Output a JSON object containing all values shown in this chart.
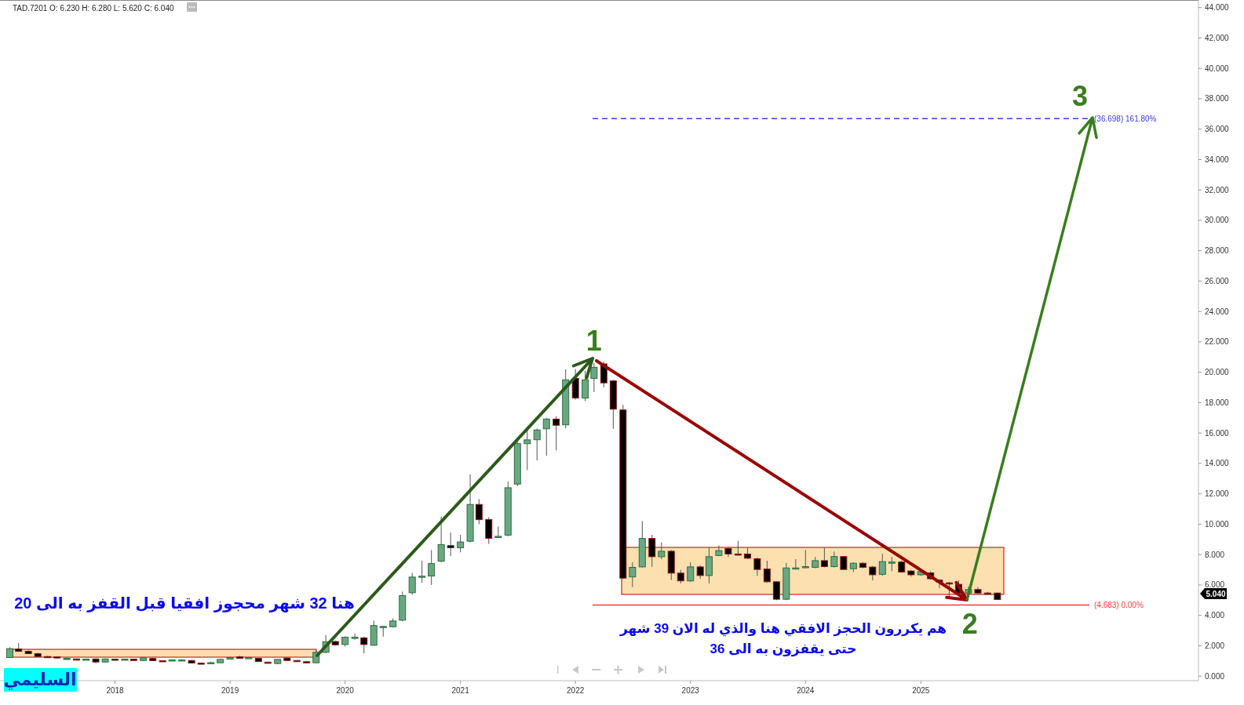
{
  "chart_data": {
    "type": "candlestick",
    "title": "TAD.7201   O: 6.230  H: 6.280  L: 5.620  C: 6.040",
    "x": [
      "2017-02",
      "2017-03",
      "2017-04",
      "2017-05",
      "2017-06",
      "2017-07",
      "2017-08",
      "2017-09",
      "2017-10",
      "2017-11",
      "2017-12",
      "2018-01",
      "2018-02",
      "2018-03",
      "2018-04",
      "2018-05",
      "2018-06",
      "2018-07",
      "2018-08",
      "2018-09",
      "2018-10",
      "2018-11",
      "2018-12",
      "2019-01",
      "2019-02",
      "2019-03",
      "2019-04",
      "2019-05",
      "2019-06",
      "2019-07",
      "2019-08",
      "2019-09",
      "2019-10",
      "2019-11",
      "2019-12",
      "2020-01",
      "2020-02",
      "2020-03",
      "2020-04",
      "2020-05",
      "2020-06",
      "2020-07",
      "2020-08",
      "2020-09",
      "2020-10",
      "2020-11",
      "2020-12",
      "2021-01",
      "2021-02",
      "2021-03",
      "2021-04",
      "2021-05",
      "2021-06",
      "2021-07",
      "2021-08",
      "2021-09",
      "2021-10",
      "2021-11",
      "2021-12",
      "2022-01",
      "2022-02",
      "2022-03",
      "2022-04",
      "2022-05",
      "2022-06",
      "2022-07",
      "2022-08",
      "2022-09",
      "2022-10",
      "2022-11",
      "2022-12",
      "2023-01",
      "2023-02",
      "2023-03",
      "2023-04",
      "2023-05",
      "2023-06",
      "2023-07",
      "2023-08",
      "2023-09",
      "2023-10",
      "2023-11",
      "2023-12",
      "2024-01",
      "2024-02",
      "2024-03",
      "2024-04",
      "2024-05",
      "2024-06",
      "2024-07",
      "2024-08",
      "2024-09",
      "2024-10",
      "2024-11",
      "2024-12",
      "2025-01",
      "2025-02",
      "2025-03",
      "2025-04",
      "2025-05",
      "2025-06",
      "2025-07",
      "2025-08",
      "2025-09"
    ],
    "ohlc": [
      [
        1.22,
        1.9,
        1.2,
        1.81
      ],
      [
        1.79,
        2.17,
        1.6,
        1.63
      ],
      [
        1.63,
        1.7,
        1.45,
        1.48
      ],
      [
        1.48,
        1.55,
        1.25,
        1.29
      ],
      [
        1.29,
        1.33,
        1.22,
        1.27
      ],
      [
        1.27,
        1.3,
        1.15,
        1.2
      ],
      [
        1.12,
        1.22,
        1.08,
        1.17
      ],
      [
        1.13,
        1.16,
        1.08,
        1.1
      ],
      [
        1.1,
        1.15,
        1.08,
        1.12
      ],
      [
        1.13,
        1.16,
        0.85,
        0.93
      ],
      [
        0.93,
        1.16,
        0.9,
        1.13
      ],
      [
        1.12,
        1.15,
        1.08,
        1.11
      ],
      [
        1.11,
        1.14,
        1.08,
        1.12
      ],
      [
        1.12,
        1.15,
        1.02,
        1.03
      ],
      [
        1.03,
        1.22,
        1.0,
        1.2
      ],
      [
        1.16,
        1.2,
        1.0,
        1.02
      ],
      [
        1.02,
        1.05,
        0.98,
        1.01
      ],
      [
        1.03,
        1.1,
        1.0,
        1.07
      ],
      [
        1.06,
        1.1,
        1.02,
        1.07
      ],
      [
        1.03,
        1.06,
        0.83,
        0.86
      ],
      [
        0.86,
        0.88,
        0.8,
        0.82
      ],
      [
        0.84,
        0.95,
        0.82,
        0.89
      ],
      [
        0.88,
        1.12,
        0.86,
        1.1
      ],
      [
        1.12,
        1.28,
        1.1,
        1.22
      ],
      [
        1.27,
        1.35,
        1.15,
        1.17
      ],
      [
        1.2,
        1.26,
        1.18,
        1.22
      ],
      [
        1.17,
        1.2,
        0.94,
        0.96
      ],
      [
        0.92,
        0.95,
        0.86,
        0.88
      ],
      [
        0.83,
        1.12,
        0.78,
        1.1
      ],
      [
        1.19,
        1.24,
        1.0,
        1.03
      ],
      [
        1.03,
        1.05,
        0.98,
        1.0
      ],
      [
        0.95,
        0.97,
        0.86,
        0.88
      ],
      [
        0.88,
        1.7,
        0.86,
        1.57
      ],
      [
        1.57,
        2.7,
        1.5,
        2.26
      ],
      [
        2.28,
        2.35,
        2.0,
        2.06
      ],
      [
        2.08,
        2.62,
        1.95,
        2.56
      ],
      [
        2.56,
        2.8,
        2.4,
        2.56
      ],
      [
        2.52,
        2.6,
        1.5,
        2.08
      ],
      [
        2.03,
        3.66,
        2.0,
        3.33
      ],
      [
        3.25,
        3.3,
        2.6,
        3.27
      ],
      [
        3.25,
        3.8,
        3.2,
        3.63
      ],
      [
        3.68,
        5.56,
        3.6,
        5.3
      ],
      [
        5.49,
        6.8,
        5.35,
        6.52
      ],
      [
        6.52,
        7.6,
        6.15,
        6.58
      ],
      [
        6.59,
        8.3,
        6.0,
        7.41
      ],
      [
        7.56,
        10.5,
        7.5,
        8.66
      ],
      [
        8.59,
        9.45,
        7.9,
        8.45
      ],
      [
        8.45,
        9.3,
        8.15,
        8.83
      ],
      [
        8.88,
        13.27,
        8.8,
        11.3
      ],
      [
        11.3,
        11.65,
        10.0,
        10.3
      ],
      [
        10.3,
        10.45,
        8.7,
        9.07
      ],
      [
        9.15,
        9.85,
        9.1,
        9.2
      ],
      [
        9.28,
        12.8,
        9.2,
        12.4
      ],
      [
        12.64,
        15.45,
        12.5,
        15.3
      ],
      [
        15.3,
        16.32,
        13.56,
        15.55
      ],
      [
        15.56,
        16.3,
        14.2,
        16.2
      ],
      [
        16.28,
        17.0,
        14.5,
        16.92
      ],
      [
        16.92,
        17.1,
        14.86,
        16.51
      ],
      [
        16.54,
        20.2,
        16.3,
        19.5
      ],
      [
        19.6,
        20.2,
        18.2,
        18.3
      ],
      [
        18.3,
        20.1,
        18.1,
        19.5
      ],
      [
        19.6,
        20.6,
        18.7,
        20.33
      ],
      [
        20.55,
        20.7,
        19.0,
        19.3
      ],
      [
        19.43,
        19.5,
        16.28,
        17.57
      ],
      [
        17.52,
        17.85,
        6.4,
        6.45
      ],
      [
        6.53,
        7.5,
        5.86,
        7.16
      ],
      [
        7.19,
        10.2,
        7.15,
        9.06
      ],
      [
        9.06,
        9.3,
        7.2,
        7.86
      ],
      [
        7.86,
        8.8,
        7.7,
        8.22
      ],
      [
        8.22,
        8.3,
        6.33,
        6.78
      ],
      [
        6.78,
        7.0,
        6.1,
        6.27
      ],
      [
        6.27,
        7.5,
        6.2,
        7.19
      ],
      [
        7.19,
        7.3,
        6.4,
        6.62
      ],
      [
        6.62,
        8.47,
        6.1,
        7.86
      ],
      [
        7.94,
        8.6,
        7.9,
        8.26
      ],
      [
        8.4,
        8.5,
        7.85,
        8.04
      ],
      [
        8.04,
        8.9,
        7.95,
        8.0
      ],
      [
        8.04,
        8.45,
        7.7,
        7.76
      ],
      [
        7.73,
        7.8,
        6.6,
        7.02
      ],
      [
        7.05,
        7.6,
        6.15,
        6.21
      ],
      [
        6.21,
        6.25,
        5.0,
        5.06
      ],
      [
        5.06,
        7.45,
        5.0,
        7.12
      ],
      [
        7.1,
        7.7,
        7.05,
        7.12
      ],
      [
        7.18,
        8.3,
        7.1,
        7.21
      ],
      [
        7.16,
        7.85,
        7.1,
        7.6
      ],
      [
        7.6,
        8.45,
        7.15,
        7.21
      ],
      [
        7.21,
        8.2,
        7.15,
        7.87
      ],
      [
        7.87,
        7.9,
        7.0,
        7.02
      ],
      [
        7.07,
        7.5,
        6.85,
        7.43
      ],
      [
        7.43,
        7.5,
        7.1,
        7.16
      ],
      [
        7.18,
        7.25,
        6.3,
        6.67
      ],
      [
        6.7,
        8.05,
        6.6,
        7.54
      ],
      [
        7.5,
        7.85,
        6.9,
        7.51
      ],
      [
        7.51,
        7.6,
        6.8,
        6.85
      ],
      [
        6.92,
        6.97,
        6.55,
        6.67
      ],
      [
        6.67,
        6.95,
        6.6,
        6.88
      ],
      [
        6.8,
        6.9,
        6.35,
        6.41
      ],
      [
        6.32,
        6.35,
        5.8,
        6.18
      ],
      [
        6.14,
        6.2,
        5.2,
        6.12
      ],
      [
        6.04,
        6.3,
        5.4,
        5.47
      ],
      [
        5.47,
        5.9,
        5.4,
        5.7
      ],
      [
        5.7,
        5.85,
        5.4,
        5.47
      ],
      [
        5.47,
        5.55,
        5.35,
        5.45
      ],
      [
        5.47,
        5.5,
        5.04,
        5.04
      ]
    ],
    "xlim": [
      "2017-01",
      "2027-06"
    ],
    "xticks": [
      "2018",
      "2019",
      "2020",
      "2021",
      "2022",
      "2023",
      "2024",
      "2025"
    ],
    "ylim": [
      -0.3,
      44.5
    ],
    "yticks": [
      {
        "value": 0,
        "label": "0.000"
      },
      {
        "value": 2,
        "label": "2.000"
      },
      {
        "value": 4,
        "label": "4.000"
      },
      {
        "value": 6,
        "label": "6.000"
      },
      {
        "value": 8,
        "label": "8.000"
      },
      {
        "value": 10,
        "label": "10.000"
      },
      {
        "value": 12,
        "label": "12.000"
      },
      {
        "value": 14,
        "label": "14.000"
      },
      {
        "value": 16,
        "label": "16.000"
      },
      {
        "value": 18,
        "label": "18.000"
      },
      {
        "value": 20,
        "label": "20.000"
      },
      {
        "value": 22,
        "label": "22.000"
      },
      {
        "value": 24,
        "label": "24.000"
      },
      {
        "value": 26,
        "label": "26.000"
      },
      {
        "value": 28,
        "label": "28.000"
      },
      {
        "value": 30,
        "label": "30.000"
      },
      {
        "value": 32,
        "label": "32.000"
      },
      {
        "value": 34,
        "label": "34.000"
      },
      {
        "value": 36,
        "label": "36.000"
      },
      {
        "value": 38,
        "label": "38.000"
      },
      {
        "value": 40,
        "label": "40.000"
      },
      {
        "value": 42,
        "label": "42.000"
      },
      {
        "value": 44,
        "label": "44.000"
      }
    ],
    "ref_lines": [
      {
        "axis": "y",
        "value": 36.698,
        "label": "(36.698) 161.80%",
        "color": "#3b3be0",
        "line_style": "dashed"
      },
      {
        "axis": "y",
        "value": 4.683,
        "label": "(4.683) 0.00%",
        "color": "#ff3b3b",
        "line_style": "solid"
      }
    ],
    "annotations": [
      "هنا 32 شهر محجوز افقيا قبل القفز به الى 20",
      "هم يكررون الحجز الافقي هنا والذي له الان 39 شهر\nحتى يقفزون به الى 36",
      "السليمي",
      {
        "text": "1",
        "x": "2022-03",
        "y": 20.6
      },
      {
        "text": "2",
        "x": "2025-06",
        "y": 4.683
      },
      "3",
      "5.040"
    ]
  }
}
